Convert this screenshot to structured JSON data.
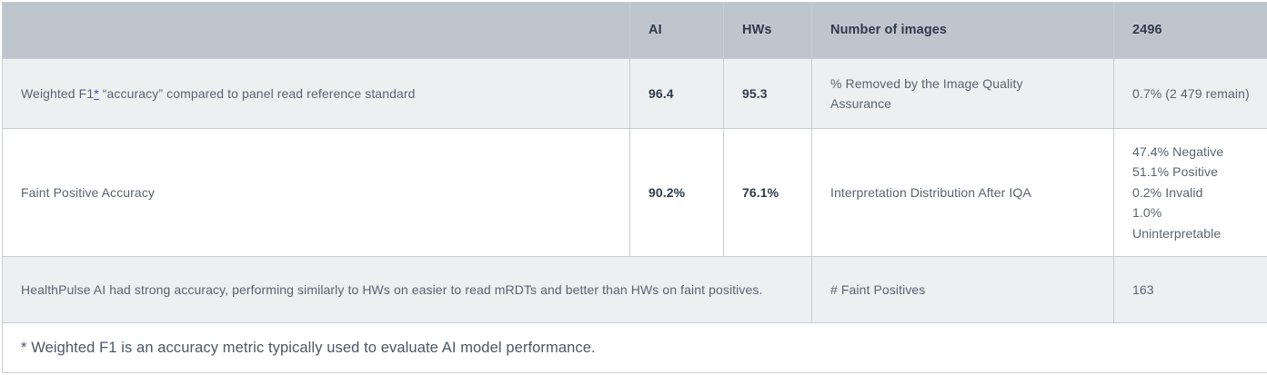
{
  "colors": {
    "header_bg": "#bfc5cd",
    "alt_row_bg": "#edf0f1",
    "row_bg": "#ffffff",
    "border": "#c6cdd3",
    "body_text": "#5a6370",
    "heading_text": "#2f3b4b",
    "footnote_link": "#3b4bbf"
  },
  "table": {
    "header": {
      "metric": "",
      "ai": "AI",
      "hws": "HWs",
      "stat_label": "Number of images",
      "stat_value": "2496"
    },
    "row1": {
      "metric_prefix": "Weighted F1",
      "footnote_marker": "*",
      "metric_suffix": " “accuracy” compared to panel read reference standard",
      "ai": "96.4",
      "hws": "95.3",
      "stat_label": "% Removed by the Image Quality Assurance",
      "stat_value": "0.7% (2 479 remain)"
    },
    "row2": {
      "metric": "Faint Positive Accuracy",
      "ai": "90.2%",
      "hws": "76.1%",
      "stat_label": "Interpretation Distribution After IQA",
      "stat_value": "47.4% Negative\n51.1% Positive\n0.2% Invalid\n1.0% Uninterpretable"
    },
    "row3": {
      "summary": "HealthPulse AI had strong accuracy, performing similarly to HWs on easier to read mRDTs and better than HWs on faint positives.",
      "stat_label": "# Faint Positives",
      "stat_value": "163"
    },
    "footnote": "* Weighted F1 is an accuracy metric typically used to evaluate AI model performance."
  }
}
